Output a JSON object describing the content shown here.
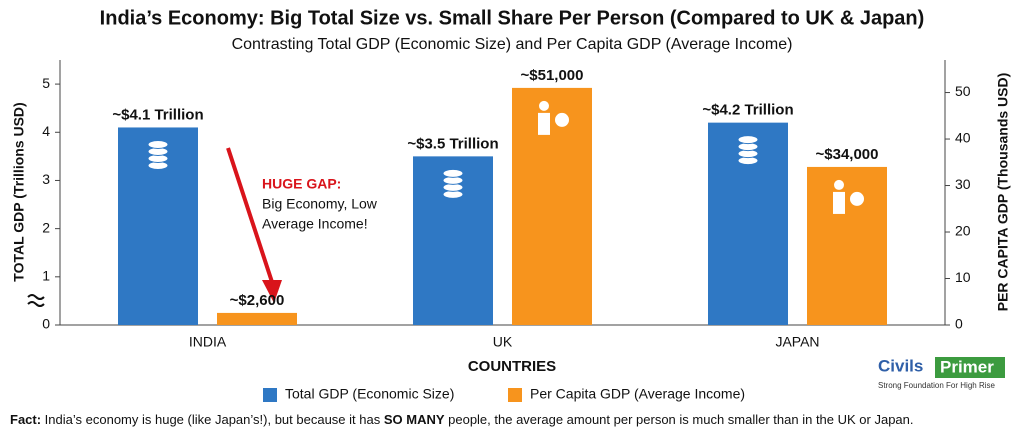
{
  "chart_data": {
    "type": "bar",
    "title": "India’s Economy: Big Total Size vs. Small Share Per Person (Compared to UK & Japan)",
    "subtitle": "Contrasting Total GDP (Economic Size) and Per Capita GDP (Average Income)",
    "xlabel": "COUNTRIES",
    "ylabel": "TOTAL GDP (Trillions USD)",
    "y2label": "PER CAPITA GDP (Thousands USD)",
    "categories": [
      "INDIA",
      "UK",
      "JAPAN"
    ],
    "series": [
      {
        "name": "Total GDP (Economic Size)",
        "color": "#2f78c4",
        "values": [
          4.1,
          3.5,
          4.2
        ],
        "value_labels": [
          "~$4.1 Trillion",
          "~$3.5 Trillion",
          "~$4.2 Trillion"
        ]
      },
      {
        "name": "Per Capita GDP (Average Income)",
        "color": "#f7941d",
        "axis": "y2",
        "values": [
          2.6,
          51,
          34
        ],
        "value_labels": [
          "~$2,600",
          "~$51,000",
          "~$34,000"
        ]
      }
    ],
    "ylim": [
      0,
      5.5
    ],
    "yticks": [
      0,
      1,
      2,
      3,
      4,
      5
    ],
    "y2lim": [
      0,
      57
    ],
    "y2ticks": [
      0,
      10,
      20,
      30,
      40,
      50
    ],
    "grid": false,
    "legend": "bottom",
    "annotation": [
      "HUGE GAP:",
      "Big Economy, Low",
      "Average Income!"
    ],
    "footnote": [
      "Fact:",
      " India’s economy is huge (like Japan’s!), but because it has ",
      "SO MANY",
      " people, the average amount per person is much smaller than in the UK or Japan."
    ],
    "logo": [
      "Civils",
      "Primer",
      "Strong Foundation For High Rise"
    ]
  }
}
